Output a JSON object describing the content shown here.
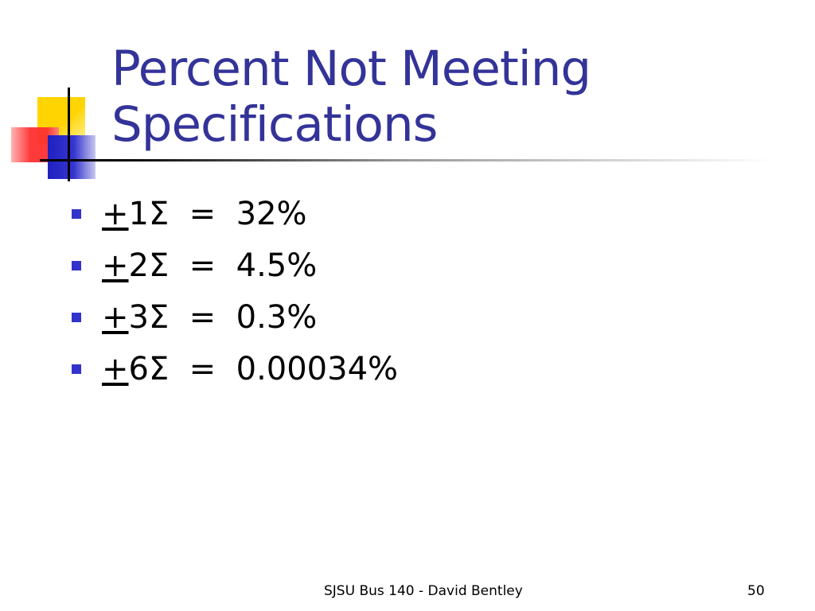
{
  "slide": {
    "title": "Percent Not Meeting Specifications",
    "bullets": [
      {
        "sign": "+",
        "text": "1Σ  =  32%"
      },
      {
        "sign": "+",
        "text": "2Σ  =  4.5%"
      },
      {
        "sign": "+",
        "text": "3Σ  =  0.3%"
      },
      {
        "sign": "+",
        "text": "6Σ  =  0.00034%"
      }
    ],
    "footer": {
      "center": "SJSU Bus 140 - David Bentley",
      "page_number": "50"
    }
  },
  "colors": {
    "title": "#333399",
    "bullet_marker": "#3333cc",
    "logo_yellow": "#ffd400",
    "logo_red": "#ff3030",
    "logo_blue": "#2020c0"
  }
}
